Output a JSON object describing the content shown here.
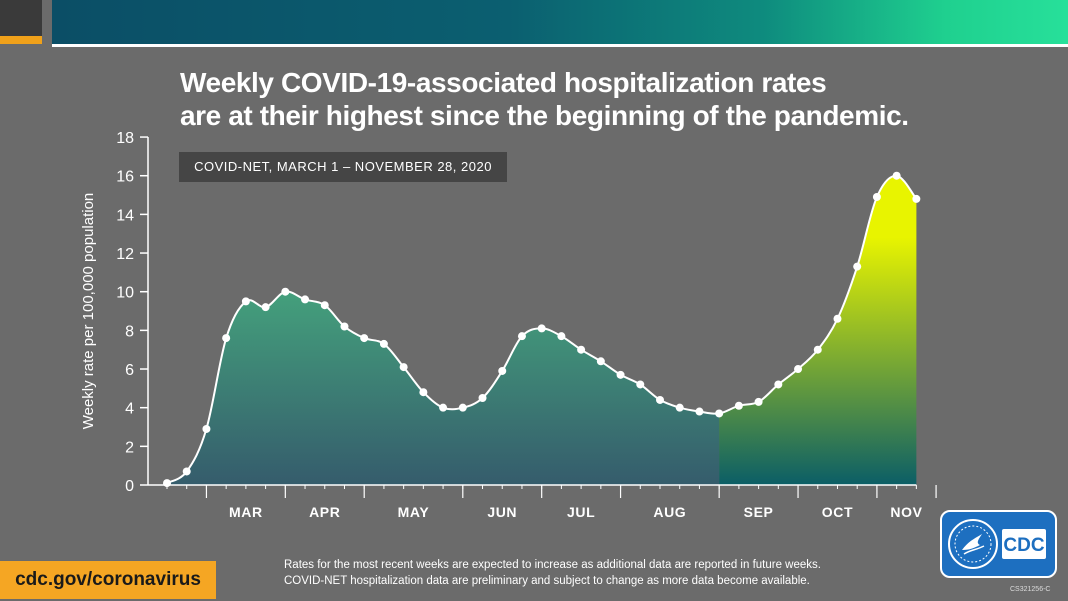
{
  "header": {
    "title_line1": "Weekly COVID-19-associated hospitalization rates",
    "title_line2": "are at their highest since the beginning of the pandemic.",
    "subtitle": "COVID-NET, MARCH 1 – NOVEMBER 28, 2020"
  },
  "footer": {
    "url": "cdc.gov/coronavirus",
    "note_line1": "Rates for the most recent weeks are expected to increase as additional data are reported in future weeks.",
    "note_line2": "COVID-NET hospitalization data are preliminary and subject to change as more data become available.",
    "code": "CS321256-C",
    "logo_text": "CDC"
  },
  "colors": {
    "background": "#6b6b6b",
    "area_early_top": "#44a07c",
    "area_early_bottom": "#355c6c",
    "area_recent_top": "#e8f400",
    "area_recent_bottom": "#0b5e66",
    "line": "#ffffff",
    "accent_orange": "#f5a623",
    "cdc_blue": "#1d6fc0"
  },
  "chart_data": {
    "type": "area",
    "title": "Weekly COVID-19-associated hospitalization rates are at their highest since the beginning of the pandemic.",
    "subtitle": "COVID-NET, MARCH 1 – NOVEMBER 28, 2020",
    "ylabel": "Weekly rate per 100,000 population",
    "xlabel": "",
    "ylim": [
      0,
      18
    ],
    "yticks": [
      0,
      2,
      4,
      6,
      8,
      10,
      12,
      14,
      16,
      18
    ],
    "months": [
      "MAR",
      "APR",
      "MAY",
      "JUN",
      "JUL",
      "AUG",
      "SEP",
      "OCT",
      "NOV"
    ],
    "month_boundaries_week": [
      3,
      7,
      11,
      16,
      20,
      24,
      29,
      33,
      37,
      40
    ],
    "grid": false,
    "legend": "none",
    "highlight_from_week": 28,
    "series": [
      {
        "x": [
          1,
          2,
          3,
          4,
          5,
          6,
          7,
          8,
          9,
          10,
          11,
          12,
          13,
          14,
          15,
          16,
          17,
          18,
          19,
          20,
          21,
          22,
          23,
          24,
          25,
          26,
          27,
          28,
          29,
          30,
          31,
          32,
          33,
          34,
          35,
          36,
          37,
          38,
          39
        ],
        "values": [
          0.1,
          0.7,
          2.9,
          7.6,
          9.5,
          9.2,
          10.0,
          9.6,
          9.3,
          8.2,
          7.6,
          7.3,
          6.1,
          4.8,
          4.0,
          4.0,
          4.5,
          5.9,
          7.7,
          8.1,
          7.7,
          7.0,
          6.4,
          5.7,
          5.2,
          4.4,
          4.0,
          3.8,
          3.7,
          4.1,
          4.3,
          5.2,
          6.0,
          7.0,
          8.6,
          11.3,
          14.9,
          16.0,
          14.8
        ]
      }
    ]
  }
}
